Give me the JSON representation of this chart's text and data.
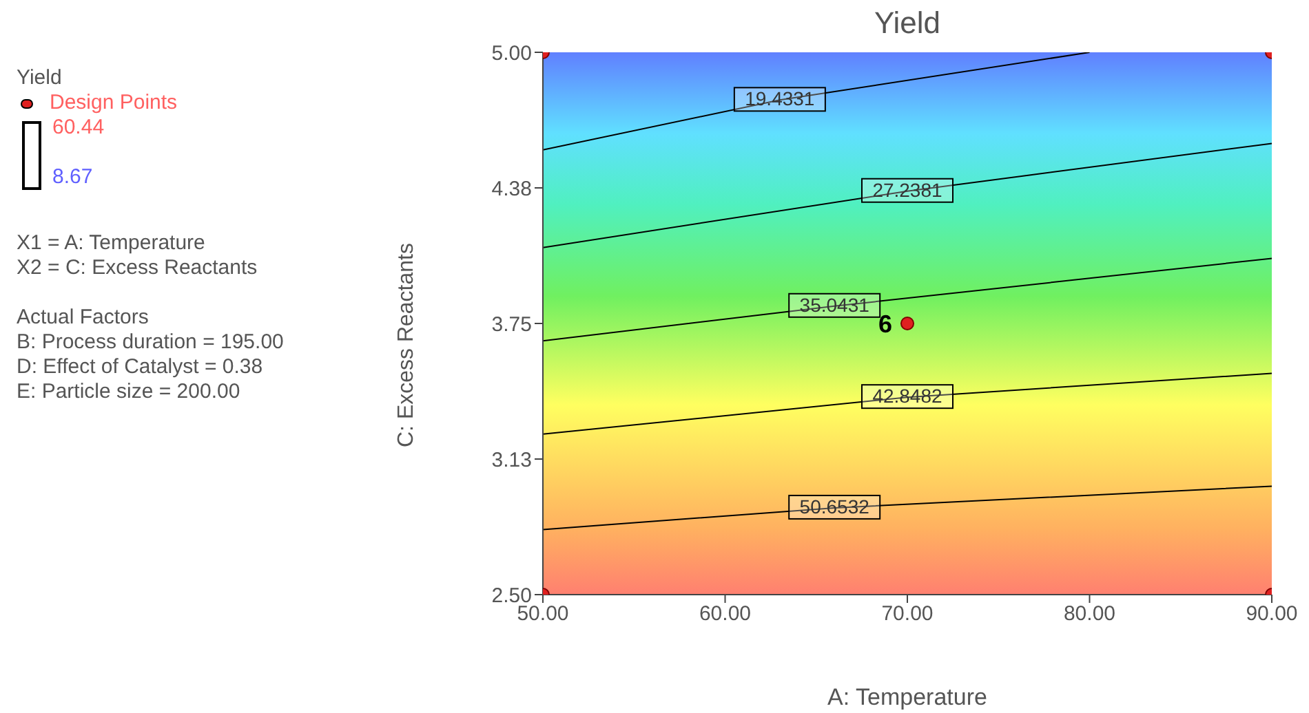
{
  "chart_data": {
    "type": "line",
    "title": "Yield",
    "xlabel": "A: Temperature",
    "ylabel": "C: Excess Reactants",
    "legend_title": "Yield",
    "legend": "left",
    "xlim": [
      50,
      90
    ],
    "ylim": [
      2.5,
      5
    ],
    "xticks": [
      {
        "value": 50,
        "label": "50.00"
      },
      {
        "value": 60,
        "label": "60.00"
      },
      {
        "value": 70,
        "label": "70.00"
      },
      {
        "value": 80,
        "label": "80.00"
      },
      {
        "value": 90,
        "label": "90.00"
      }
    ],
    "yticks": [
      {
        "value": 2.5,
        "label": "2.50"
      },
      {
        "value": 3.125,
        "label": "3.13"
      },
      {
        "value": 3.75,
        "label": "3.75"
      },
      {
        "value": 4.375,
        "label": "4.38"
      },
      {
        "value": 5,
        "label": "5.00"
      }
    ],
    "grid": false,
    "marker": "none",
    "line_style": "solid",
    "series": [
      {
        "name": "19.4331",
        "color": "#000000",
        "x": [
          50,
          63,
          80
        ],
        "values": [
          4.55,
          4.78,
          5.0
        ]
      },
      {
        "name": "27.2381",
        "color": "#000000",
        "x": [
          50,
          70,
          90
        ],
        "values": [
          4.1,
          4.36,
          4.58
        ]
      },
      {
        "name": "35.0431",
        "color": "#000000",
        "x": [
          50,
          66,
          90
        ],
        "values": [
          3.67,
          3.83,
          4.05
        ]
      },
      {
        "name": "42.8482",
        "color": "#000000",
        "x": [
          50,
          70,
          90
        ],
        "values": [
          3.24,
          3.41,
          3.52
        ]
      },
      {
        "name": "50.6532",
        "color": "#000000",
        "x": [
          50,
          66,
          90
        ],
        "values": [
          2.8,
          2.9,
          3.0
        ]
      },
      {
        "name": "Design Points",
        "type": "scatter",
        "color": "#e02020",
        "marker": "circle",
        "x": [
          50,
          50,
          90,
          90,
          70
        ],
        "values": [
          2.5,
          5,
          2.5,
          5,
          3.75
        ]
      }
    ],
    "annotations": [
      "60.44",
      "8.67",
      "X1 = A: Temperature",
      "X2 = C: Excess Reactants",
      "Actual Factors",
      "B: Process duration = 195.00",
      "D: Effect of Catalyst = 0.38",
      "E: Particle size = 200.00",
      {
        "text": "6",
        "x": 70,
        "y": 3.75
      }
    ]
  }
}
